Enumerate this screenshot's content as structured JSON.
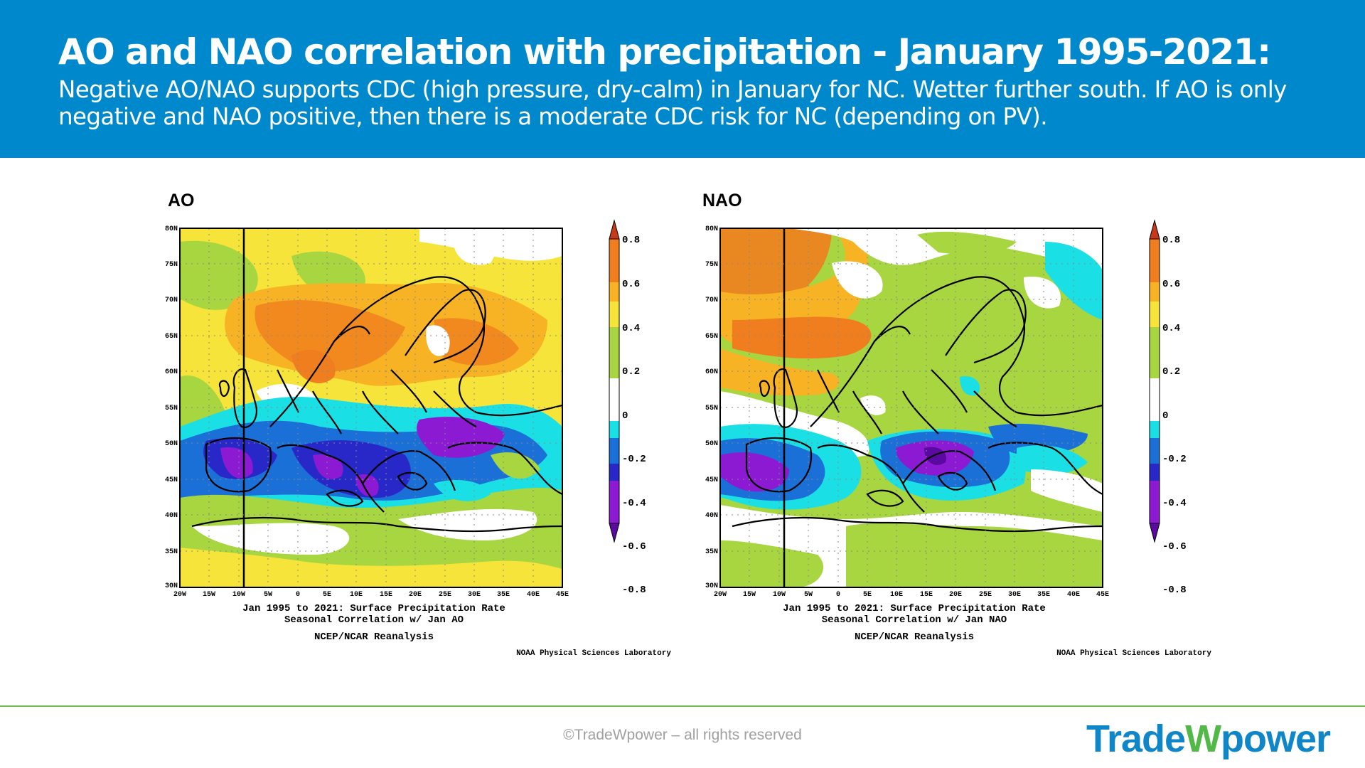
{
  "header": {
    "title": "AO and NAO correlation with precipitation - January 1995-2021:",
    "subtitle": "Negative AO/NAO supports CDC (high pressure, dry-calm) in January for NC. Wetter further south. If AO is only negative and NAO positive, then there is a moderate CDC risk for NC (depending on PV)."
  },
  "maps": [
    {
      "panel_title": "AO",
      "caption_line1": "Jan 1995 to 2021: Surface Precipitation Rate",
      "caption_line2": "Seasonal Correlation w/ Jan AO",
      "reanalysis": "NCEP/NCAR Reanalysis",
      "credit": "NOAA Physical Sciences Laboratory"
    },
    {
      "panel_title": "NAO",
      "caption_line1": "Jan 1995 to 2021: Surface Precipitation Rate",
      "caption_line2": "Seasonal Correlation w/ Jan NAO",
      "reanalysis": "NCEP/NCAR Reanalysis",
      "credit": "NOAA Physical Sciences Laboratory"
    }
  ],
  "map_axes": {
    "lat_labels": [
      "80N",
      "75N",
      "70N",
      "65N",
      "60N",
      "55N",
      "50N",
      "45N",
      "40N",
      "35N",
      "30N"
    ],
    "lon_labels": [
      "20W",
      "15W",
      "10W",
      "5W",
      "0",
      "5E",
      "10E",
      "15E",
      "20E",
      "25E",
      "30E",
      "35E",
      "40E",
      "45E"
    ]
  },
  "colorbar": {
    "tick_labels": [
      "0.8",
      "0.6",
      "0.4",
      "0.2",
      "0",
      "-0.2",
      "-0.4",
      "-0.6",
      "-0.8"
    ],
    "colors": [
      "#c8391a",
      "#f07e1e",
      "#f7b324",
      "#f6e43a",
      "#a8d640",
      "#ffffff",
      "#1ae0e6",
      "#1a70d6",
      "#2828c8",
      "#8c1ad2",
      "#5a0aa0"
    ]
  },
  "footer": {
    "copyright": "©TradeWpower – all rights reserved",
    "logo_part1": "Trade",
    "logo_part2": "W",
    "logo_part3": "power"
  },
  "colors": {
    "header_bg": "#0088cc",
    "footer_line": "#6fbf4a",
    "logo_blue": "#0e86c8",
    "logo_green": "#52b848"
  }
}
